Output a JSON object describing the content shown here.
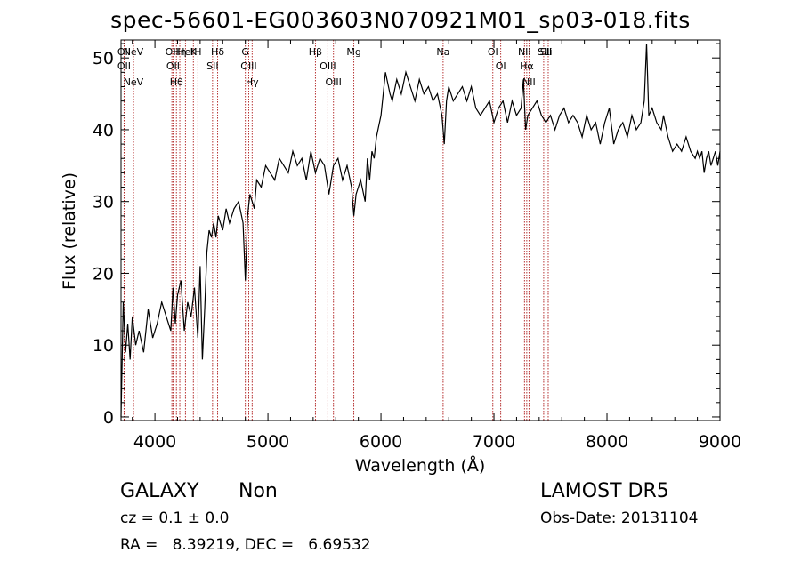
{
  "title": "spec-56601-EG003603N070921M01_sp03-018.fits",
  "info": {
    "class": "GALAXY",
    "subclass": "Non",
    "survey": "LAMOST DR5",
    "cz": "cz = 0.1 ± 0.0",
    "obs_date": "Obs-Date: 20131104",
    "radec": "RA =   8.39219, DEC =   6.69532"
  },
  "colors": {
    "line": "#000000",
    "marker": "#b02020"
  },
  "chart_data": {
    "type": "line",
    "title": "spec-56601-EG003603N070921M01_sp03-018.fits",
    "xlabel": "Wavelength (Å)",
    "ylabel": "Flux (relative)",
    "xlim": [
      3700,
      9000
    ],
    "ylim": [
      -0.5,
      52.5
    ],
    "xticks": [
      4000,
      5000,
      6000,
      7000,
      8000,
      9000
    ],
    "yticks": [
      0,
      10,
      20,
      30,
      40,
      50
    ],
    "grid": false,
    "series": [
      {
        "x": [
          3700,
          3720,
          3740,
          3760,
          3780,
          3800,
          3830,
          3860,
          3900,
          3940,
          3980,
          4020,
          4060,
          4100,
          4140,
          4160,
          4180,
          4200,
          4230,
          4260,
          4290,
          4320,
          4350,
          4380,
          4400,
          4420,
          4440,
          4460,
          4480,
          4500,
          4520,
          4540,
          4560,
          4580,
          4600,
          4630,
          4660,
          4700,
          4740,
          4780,
          4800,
          4820,
          4840,
          4860,
          4880,
          4900,
          4940,
          4980,
          5020,
          5060,
          5100,
          5140,
          5180,
          5220,
          5260,
          5300,
          5340,
          5380,
          5420,
          5460,
          5500,
          5540,
          5580,
          5620,
          5660,
          5700,
          5740,
          5760,
          5780,
          5820,
          5860,
          5880,
          5900,
          5920,
          5940,
          5960,
          6000,
          6040,
          6080,
          6100,
          6140,
          6180,
          6220,
          6260,
          6300,
          6340,
          6380,
          6420,
          6460,
          6500,
          6540,
          6560,
          6580,
          6600,
          6640,
          6680,
          6720,
          6760,
          6800,
          6840,
          6880,
          6920,
          6960,
          7000,
          7040,
          7080,
          7120,
          7160,
          7200,
          7240,
          7260,
          7280,
          7300,
          7340,
          7380,
          7420,
          7460,
          7500,
          7540,
          7580,
          7620,
          7660,
          7700,
          7740,
          7780,
          7820,
          7860,
          7900,
          7940,
          7980,
          8020,
          8060,
          8100,
          8140,
          8180,
          8220,
          8260,
          8300,
          8330,
          8350,
          8370,
          8400,
          8440,
          8480,
          8500,
          8540,
          8580,
          8620,
          8660,
          8700,
          8740,
          8780,
          8800,
          8820,
          8840,
          8860,
          8880,
          8900,
          8920,
          8940,
          8960,
          8980,
          9000
        ],
        "y": [
          0,
          16,
          9,
          13,
          8,
          14,
          10,
          12,
          9,
          15,
          11,
          13,
          16,
          14,
          12,
          18,
          13,
          17,
          19,
          12,
          16,
          14,
          18,
          11,
          21,
          8,
          15,
          23,
          26,
          25,
          27,
          25,
          28,
          27,
          26,
          29,
          27,
          29,
          30,
          27,
          19,
          28,
          31,
          30,
          29,
          33,
          32,
          35,
          34,
          33,
          36,
          35,
          34,
          37,
          35,
          36,
          33,
          37,
          34,
          36,
          35,
          31,
          35,
          36,
          33,
          35,
          32,
          28,
          31,
          33,
          30,
          36,
          33,
          37,
          36,
          39,
          42,
          48,
          45,
          44,
          47,
          45,
          48,
          46,
          44,
          47,
          45,
          46,
          44,
          45,
          42,
          38,
          44,
          46,
          44,
          45,
          46,
          44,
          46,
          43,
          42,
          43,
          44,
          41,
          43,
          44,
          41,
          44,
          42,
          43,
          47,
          40,
          42,
          43,
          44,
          42,
          41,
          42,
          40,
          42,
          43,
          41,
          42,
          41,
          39,
          42,
          40,
          41,
          38,
          41,
          43,
          38,
          40,
          41,
          39,
          42,
          40,
          41,
          44,
          52,
          42,
          43,
          41,
          40,
          42,
          39,
          37,
          38,
          37,
          39,
          37,
          36,
          37,
          36,
          37,
          34,
          36,
          37,
          35,
          36,
          37,
          35,
          37
        ]
      }
    ],
    "lines": [
      {
        "x": 3727,
        "label": "OII"
      },
      {
        "x": 3727,
        "label": "OII"
      },
      {
        "x": 3810,
        "label": "NeV"
      },
      {
        "x": 3810,
        "label": "NeV"
      },
      {
        "x": 4150,
        "label": "OII"
      },
      {
        "x": 4160,
        "label": "OII"
      },
      {
        "x": 4190,
        "label": "Hθ"
      },
      {
        "x": 4220,
        "label": "Hη"
      },
      {
        "x": 4270,
        "label": "HeI"
      },
      {
        "x": 4340,
        "label": "K"
      },
      {
        "x": 4380,
        "label": "H"
      },
      {
        "x": 4510,
        "label": "SII"
      },
      {
        "x": 4555,
        "label": "Hδ"
      },
      {
        "x": 4800,
        "label": "G"
      },
      {
        "x": 4830,
        "label": "OIII"
      },
      {
        "x": 4860,
        "label": "Hγ"
      },
      {
        "x": 5420,
        "label": "Hβ"
      },
      {
        "x": 5530,
        "label": "OIII"
      },
      {
        "x": 5580,
        "label": "OIII"
      },
      {
        "x": 5760,
        "label": "Mg"
      },
      {
        "x": 6550,
        "label": "Na"
      },
      {
        "x": 6990,
        "label": "OI"
      },
      {
        "x": 7060,
        "label": "OI"
      },
      {
        "x": 7270,
        "label": "NII"
      },
      {
        "x": 7290,
        "label": "Hα"
      },
      {
        "x": 7310,
        "label": "NII"
      },
      {
        "x": 7440,
        "label": "SII"
      },
      {
        "x": 7460,
        "label": "SII"
      },
      {
        "x": 7480,
        "label": "Li"
      }
    ]
  }
}
